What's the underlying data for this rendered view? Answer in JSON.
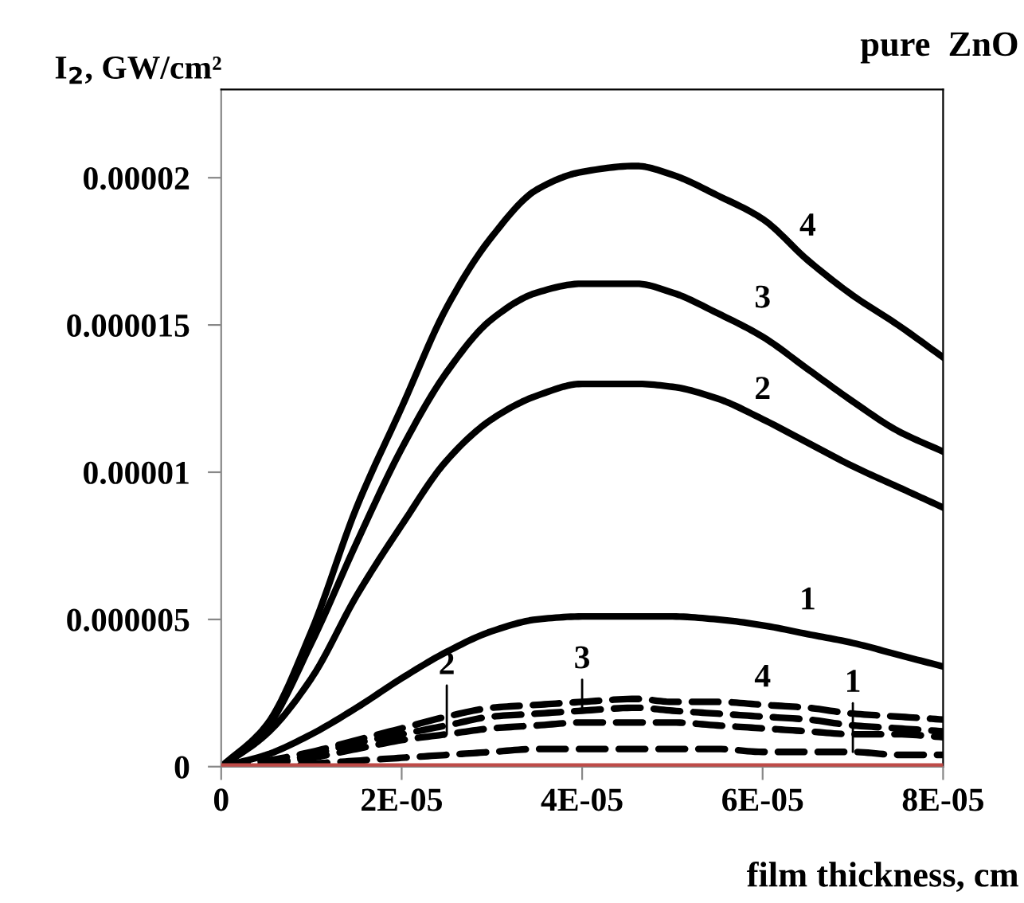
{
  "chart_data": {
    "type": "line",
    "title": "pure  ZnO",
    "ylabel": "I$_{2}$, GW/cm²",
    "xlabel": "film thickness, cm",
    "x": [
      0,
      5e-06,
      1e-05,
      1.5e-05,
      2e-05,
      2.5e-05,
      3e-05,
      3.5e-05,
      4e-05,
      4.6e-05,
      5e-05,
      5.5e-05,
      6e-05,
      6.5e-05,
      7e-05,
      7.5e-05,
      8e-05
    ],
    "series": [
      {
        "name": "4",
        "color": "#000000",
        "line_style": "solid",
        "values": [
          0,
          1.4e-06,
          4.6e-06,
          8.8e-06,
          1.22e-05,
          1.56e-05,
          1.8e-05,
          1.96e-05,
          2.02e-05,
          2.04e-05,
          2.01e-05,
          1.94e-05,
          1.86e-05,
          1.72e-05,
          1.6e-05,
          1.5e-05,
          1.39e-05
        ]
      },
      {
        "name": "3",
        "color": "#000000",
        "line_style": "solid",
        "values": [
          0,
          1.3e-06,
          4.2e-06,
          7.6e-06,
          1.08e-05,
          1.34e-05,
          1.52e-05,
          1.61e-05,
          1.64e-05,
          1.64e-05,
          1.61e-05,
          1.54e-05,
          1.46e-05,
          1.35e-05,
          1.24e-05,
          1.14e-05,
          1.07e-05
        ]
      },
      {
        "name": "2",
        "color": "#000000",
        "line_style": "solid",
        "values": [
          0,
          1.1e-06,
          3e-06,
          5.8e-06,
          8.2e-06,
          1.04e-05,
          1.18e-05,
          1.26e-05,
          1.3e-05,
          1.3e-05,
          1.29e-05,
          1.25e-05,
          1.18e-05,
          1.1e-05,
          1.02e-05,
          9.5e-06,
          8.8e-06
        ]
      },
      {
        "name": "1",
        "color": "#000000",
        "line_style": "solid",
        "values": [
          0,
          4e-07,
          1.1e-06,
          2e-06,
          3e-06,
          3.9e-06,
          4.6e-06,
          5e-06,
          5.1e-06,
          5.1e-06,
          5.1e-06,
          5e-06,
          4.8e-06,
          4.5e-06,
          4.2e-06,
          3.8e-06,
          3.4e-06
        ]
      },
      {
        "name": "4",
        "color": "#000000",
        "line_style": "dashed",
        "values": [
          0,
          2e-07,
          5e-07,
          9e-07,
          1.3e-06,
          1.7e-06,
          2e-06,
          2.1e-06,
          2.2e-06,
          2.3e-06,
          2.2e-06,
          2.2e-06,
          2.1e-06,
          2e-06,
          1.8e-06,
          1.7e-06,
          1.6e-06
        ]
      },
      {
        "name": "3",
        "color": "#000000",
        "line_style": "dashed",
        "values": [
          0,
          1e-07,
          4e-07,
          8e-07,
          1.1e-06,
          1.4e-06,
          1.7e-06,
          1.8e-06,
          1.9e-06,
          2e-06,
          1.9e-06,
          1.8e-06,
          1.7e-06,
          1.6e-06,
          1.4e-06,
          1.3e-06,
          1.2e-06
        ]
      },
      {
        "name": "2",
        "color": "#000000",
        "line_style": "dashed",
        "values": [
          0,
          1e-07,
          3e-07,
          6e-07,
          9e-07,
          1.1e-06,
          1.3e-06,
          1.4e-06,
          1.5e-06,
          1.5e-06,
          1.5e-06,
          1.4e-06,
          1.3e-06,
          1.2e-06,
          1.1e-06,
          1.1e-06,
          1e-06
        ]
      },
      {
        "name": "1",
        "color": "#000000",
        "line_style": "dashed",
        "values": [
          0,
          0,
          1e-07,
          2e-07,
          3e-07,
          4e-07,
          5e-07,
          6e-07,
          6e-07,
          6e-07,
          6e-07,
          6e-07,
          5e-07,
          5e-07,
          5e-07,
          4e-07,
          4e-07
        ]
      },
      {
        "color": "#be4b48",
        "line_style": "solid",
        "values": [
          0,
          0,
          0,
          0,
          0,
          0,
          0,
          0,
          0,
          0,
          0,
          0,
          0,
          0,
          0,
          0,
          0
        ]
      }
    ],
    "xlim": [
      0,
      8e-05
    ],
    "ylim": [
      0,
      2.3e-05
    ],
    "xticks": [
      0,
      {
        "value": 2e-05,
        "label": "2E-05"
      },
      {
        "value": 4e-05,
        "label": "4E-05"
      },
      {
        "value": 6e-05,
        "label": "6E-05"
      },
      {
        "value": 8e-05,
        "label": "8E-05"
      }
    ],
    "yticks": [
      0,
      {
        "value": 5e-06,
        "label": "0.000005"
      },
      {
        "value": 1e-05,
        "label": "0.00001"
      },
      {
        "value": 1.5e-05,
        "label": "0.000015"
      },
      {
        "value": 2e-05,
        "label": "0.00002"
      }
    ],
    "grid": false,
    "legend": false
  }
}
